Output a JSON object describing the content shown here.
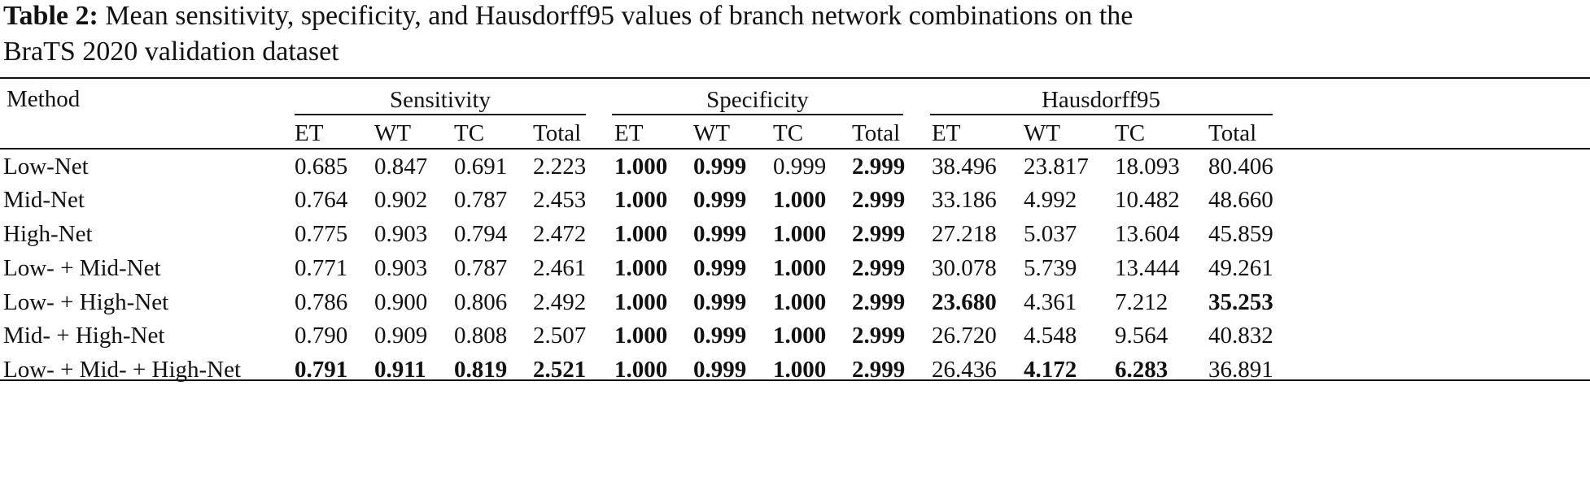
{
  "caption": {
    "label": "Table 2:",
    "lines": [
      "Mean sensitivity, specificity, and Hausdorff95 values of branch network combinations on the",
      "BraTS 2020 validation dataset"
    ]
  },
  "table": {
    "header": {
      "method": "Method",
      "groups": [
        "Sensitivity",
        "Specificity",
        "Hausdorff95"
      ],
      "columns": [
        "ET",
        "WT",
        "TC",
        "Total",
        "ET",
        "WT",
        "TC",
        "Total",
        "ET",
        "WT",
        "TC",
        "Total"
      ]
    },
    "rows": [
      {
        "label": "Low-Net",
        "cells": [
          "0.685",
          "0.847",
          "0.691",
          "2.223",
          "1.000",
          "0.999",
          "0.999",
          "2.999",
          "38.496",
          "23.817",
          "18.093",
          "80.406"
        ],
        "bold": [
          4,
          5,
          7
        ]
      },
      {
        "label": "Mid-Net",
        "cells": [
          "0.764",
          "0.902",
          "0.787",
          "2.453",
          "1.000",
          "0.999",
          "1.000",
          "2.999",
          "33.186",
          "4.992",
          "10.482",
          "48.660"
        ],
        "bold": [
          4,
          5,
          6,
          7
        ]
      },
      {
        "label": "High-Net",
        "cells": [
          "0.775",
          "0.903",
          "0.794",
          "2.472",
          "1.000",
          "0.999",
          "1.000",
          "2.999",
          "27.218",
          "5.037",
          "13.604",
          "45.859"
        ],
        "bold": [
          4,
          5,
          6,
          7
        ]
      },
      {
        "label": "Low- + Mid-Net",
        "cells": [
          "0.771",
          "0.903",
          "0.787",
          "2.461",
          "1.000",
          "0.999",
          "1.000",
          "2.999",
          "30.078",
          "5.739",
          "13.444",
          "49.261"
        ],
        "bold": [
          4,
          5,
          6,
          7
        ]
      },
      {
        "label": "Low- + High-Net",
        "cells": [
          "0.786",
          "0.900",
          "0.806",
          "2.492",
          "1.000",
          "0.999",
          "1.000",
          "2.999",
          "23.680",
          "4.361",
          "7.212",
          "35.253"
        ],
        "bold": [
          4,
          5,
          6,
          7,
          8,
          11
        ]
      },
      {
        "label": "Mid- + High-Net",
        "cells": [
          "0.790",
          "0.909",
          "0.808",
          "2.507",
          "1.000",
          "0.999",
          "1.000",
          "2.999",
          "26.720",
          "4.548",
          "9.564",
          "40.832"
        ],
        "bold": [
          4,
          5,
          6,
          7
        ]
      },
      {
        "label": "Low- + Mid- + High-Net",
        "cells": [
          "0.791",
          "0.911",
          "0.819",
          "2.521",
          "1.000",
          "0.999",
          "1.000",
          "2.999",
          "26.436",
          "4.172",
          "6.283",
          "36.891"
        ],
        "bold": [
          0,
          1,
          2,
          3,
          4,
          5,
          6,
          7,
          9,
          10
        ]
      }
    ]
  }
}
